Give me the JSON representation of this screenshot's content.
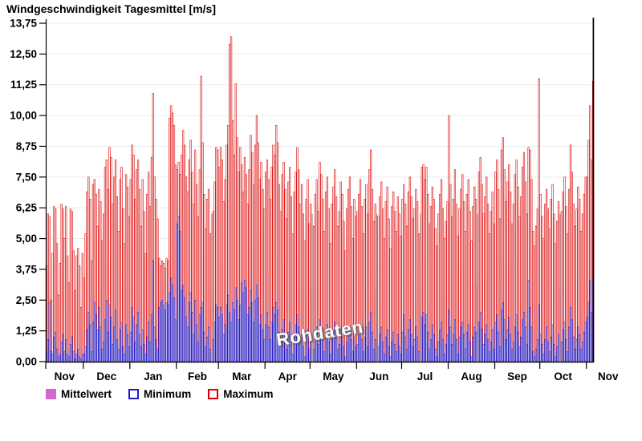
{
  "title": "Windgeschwindigkeit Tagesmittel [m/s]",
  "watermark": "Rohdaten",
  "legend": [
    {
      "label": "Mittelwert",
      "type": "filled",
      "color": "#D368D3"
    },
    {
      "label": "Minimum",
      "type": "outline",
      "color": "#1A1ACC"
    },
    {
      "label": "Maximum",
      "type": "outline",
      "color": "#DC0000"
    }
  ],
  "colors": {
    "mean_fill": "#D368D3",
    "min_stroke": "#1A1ACC",
    "max_stroke": "#DC0000",
    "bar_inner": "#FFFFFF",
    "grid": "#EBEBEB",
    "axis": "#000000",
    "missing_marker": "#999999",
    "text": "#000000"
  },
  "chart_data": {
    "type": "bar",
    "title": "Windgeschwindigkeit Tagesmittel [m/s]",
    "xlabel": "",
    "ylabel": "",
    "ylim": [
      0,
      13.75
    ],
    "grid": "horizontal",
    "legend_position": "bottom-left",
    "y_tick_values": [
      0,
      1.25,
      2.5,
      3.75,
      5,
      6.25,
      7.5,
      8.75,
      10,
      11.25,
      12.5,
      13.75
    ],
    "y_tick_labels": [
      "0,00",
      "1,25",
      "2,50",
      "3,75",
      "5,00",
      "6,25",
      "7,50",
      "8,75",
      "10,00",
      "11,25",
      "12,50",
      "13,75"
    ],
    "x_month_labels": [
      "Nov",
      "Dec",
      "Jan",
      "Feb",
      "Mar",
      "Apr",
      "May",
      "Jun",
      "Jul",
      "Aug",
      "Sep",
      "Oct",
      "Nov"
    ],
    "month_start_days": [
      0,
      25,
      56,
      87,
      115,
      146,
      176,
      207,
      237,
      268,
      299,
      329,
      360,
      389
    ],
    "days": 365,
    "missing_days": [
      110,
      177,
      220,
      249,
      287,
      342
    ],
    "series": [
      {
        "name": "Minimum",
        "values": [
          0.4,
          0.9,
          2.4,
          0.4,
          0.3,
          1.0,
          1.2,
          0.5,
          0.2,
          0.3,
          0.8,
          1.1,
          0.4,
          0.9,
          0.3,
          0.2,
          0.7,
          1.0,
          0.4,
          0.1,
          0.3,
          0.5,
          0.2,
          0.1,
          0.3,
          0.3,
          0.6,
          1.3,
          2.0,
          1.5,
          0.4,
          1.6,
          2.4,
          1.9,
          1.3,
          2.2,
          1.4,
          0.5,
          0.8,
          1.7,
          2.5,
          1.2,
          2.3,
          1.8,
          0.7,
          1.4,
          2.1,
          0.9,
          0.5,
          1.3,
          1.6,
          0.6,
          0.3,
          1.5,
          1.1,
          0.6,
          1.2,
          2.2,
          1.8,
          0.8,
          1.5,
          2.0,
          1.1,
          0.6,
          1.3,
          0.7,
          0.3,
          1.0,
          1.6,
          0.8,
          1.9,
          4.1,
          1.4,
          0.9,
          0.5,
          2.2,
          2.4,
          2.5,
          2.3,
          2.1,
          2.4,
          2.3,
          2.8,
          3.4,
          3.1,
          2.6,
          1.7,
          5.6,
          5.9,
          5.3,
          2.9,
          3.1,
          2.6,
          1.8,
          1.4,
          2.4,
          2.8,
          2.0,
          1.1,
          2.5,
          1.5,
          0.8,
          1.9,
          2.2,
          2.4,
          1.2,
          0.6,
          1.0,
          1.4,
          0.5,
          0.0,
          0.9,
          1.6,
          2.3,
          2.2,
          1.8,
          2.2,
          1.9,
          1.1,
          1.5,
          2.3,
          2.7,
          2.0,
          1.6,
          2.4,
          2.1,
          3.0,
          2.5,
          1.7,
          2.3,
          3.2,
          2.8,
          3.3,
          3.0,
          1.9,
          2.2,
          2.9,
          2.4,
          1.6,
          2.5,
          3.1,
          2.6,
          1.5,
          1.9,
          1.3,
          0.9,
          1.5,
          2.0,
          1.4,
          0.9,
          1.6,
          2.2,
          1.9,
          2.4,
          2.1,
          1.2,
          0.7,
          1.3,
          1.7,
          1.1,
          0.5,
          1.2,
          1.6,
          0.9,
          0.3,
          1.0,
          1.5,
          1.9,
          1.4,
          0.8,
          1.1,
          0.6,
          0.2,
          0.8,
          1.3,
          0.5,
          0.8,
          0.0,
          0.5,
          1.0,
          1.4,
          0.7,
          1.7,
          1.3,
          0.9,
          0.4,
          1.1,
          1.5,
          0.8,
          0.3,
          0.9,
          1.2,
          1.6,
          1.0,
          0.5,
          0.7,
          1.3,
          1.0,
          0.6,
          0.2,
          0.8,
          1.2,
          1.4,
          0.9,
          0.4,
          1.0,
          0.6,
          0.7,
          1.1,
          1.5,
          0.9,
          0.4,
          1.0,
          1.4,
          0.6,
          1.6,
          2.0,
          1.2,
          0.5,
          0.9,
          0.0,
          0.6,
          1.1,
          1.4,
          0.8,
          0.3,
          1.0,
          1.3,
          0.6,
          0.2,
          0.8,
          1.2,
          0.7,
          0.4,
          1.1,
          0.6,
          0.3,
          1.2,
          1.9,
          1.0,
          0.5,
          1.3,
          1.7,
          1.1,
          0.6,
          0.9,
          1.4,
          1.0,
          0.4,
          0.0,
          1.8,
          2.0,
          1.5,
          1.9,
          1.2,
          0.5,
          0.9,
          1.5,
          1.1,
          0.5,
          0.2,
          0.8,
          1.3,
          1.6,
          0.9,
          0.3,
          0.7,
          1.1,
          2.1,
          1.4,
          0.7,
          1.1,
          1.7,
          0.9,
          0.3,
          1.0,
          1.4,
          1.6,
          1.1,
          0.5,
          1.2,
          1.5,
          0.8,
          0.2,
          1.0,
          1.4,
          1.2,
          0.0,
          1.6,
          2.0,
          1.3,
          0.7,
          1.1,
          1.5,
          0.9,
          0.4,
          0.8,
          1.3,
          0.5,
          1.6,
          1.9,
          1.2,
          0.6,
          2.1,
          2.4,
          1.7,
          0.9,
          1.3,
          1.8,
          1.1,
          0.5,
          0.8,
          1.4,
          1.9,
          1.2,
          0.6,
          1.0,
          1.7,
          2.0,
          1.4,
          0.7,
          3.3,
          2.2,
          1.4,
          0.4,
          0.2,
          0.5,
          0.9,
          2.3,
          1.1,
          0.7,
          0.3,
          0.9,
          1.4,
          0.8,
          0.4,
          1.0,
          1.5,
          0.7,
          0.2,
          0.6,
          1.1,
          0.0,
          0.8,
          1.3,
          1.6,
          0.9,
          0.4,
          1.4,
          2.2,
          1.7,
          1.0,
          0.5,
          0.9,
          1.4,
          1.1,
          0.5,
          0.8,
          1.2,
          1.6,
          1.8,
          2.4,
          3.3,
          2.0,
          3.4
        ]
      },
      {
        "name": "Mittelwert",
        "values": [
          1.9,
          2.7,
          3.7,
          1.4,
          2.0,
          3.3,
          3.5,
          2.4,
          1.1,
          1.8,
          2.9,
          3.4,
          2.3,
          3.2,
          2.0,
          1.4,
          2.8,
          3.3,
          2.1,
          1.2,
          2.0,
          2.2,
          1.6,
          0.9,
          1.9,
          1.5,
          2.4,
          3.2,
          3.8,
          3.0,
          1.8,
          3.4,
          3.7,
          3.1,
          2.4,
          3.3,
          2.9,
          2.1,
          2.7,
          3.9,
          4.4,
          3.3,
          4.5,
          4.1,
          2.9,
          3.6,
          4.2,
          3.0,
          2.3,
          3.5,
          3.8,
          2.8,
          2.0,
          3.7,
          3.3,
          2.6,
          3.6,
          4.6,
          4.2,
          3.0,
          3.9,
          4.3,
          3.3,
          2.5,
          3.6,
          2.8,
          1.9,
          3.2,
          3.8,
          2.9,
          4.1,
          5.2,
          3.7,
          3.1,
          2.6,
          3.3,
          3.2,
          3.4,
          3.3,
          3.1,
          3.4,
          3.3,
          5.6,
          6.2,
          5.9,
          5.5,
          4.4,
          6.6,
          7.0,
          6.4,
          4.9,
          5.3,
          4.6,
          3.8,
          3.3,
          4.3,
          4.8,
          3.9,
          2.9,
          4.4,
          3.4,
          2.6,
          3.8,
          4.6,
          4.2,
          3.1,
          2.3,
          2.9,
          3.2,
          2.2,
          0.0,
          2.7,
          3.5,
          4.3,
          4.2,
          3.9,
          4.4,
          4.0,
          3.0,
          3.6,
          4.5,
          5.0,
          5.2,
          5.6,
          4.7,
          4.1,
          5.3,
          4.5,
          3.7,
          4.4,
          5.3,
          4.6,
          5.5,
          4.9,
          3.8,
          4.2,
          5.1,
          4.4,
          3.5,
          4.6,
          5.4,
          4.7,
          3.6,
          4.0,
          3.3,
          2.8,
          3.8,
          4.3,
          3.6,
          3.0,
          3.9,
          4.5,
          4.1,
          4.8,
          4.4,
          3.3,
          2.7,
          3.5,
          4.0,
          3.2,
          2.4,
          3.4,
          3.8,
          3.0,
          2.1,
          3.1,
          3.7,
          4.2,
          3.6,
          2.8,
          3.3,
          2.6,
          1.9,
          2.9,
          3.4,
          2.3,
          2.9,
          0.0,
          2.3,
          3.1,
          3.6,
          2.7,
          3.9,
          3.5,
          3.0,
          2.2,
          3.2,
          3.6,
          2.8,
          1.9,
          2.9,
          3.3,
          3.8,
          3.1,
          2.3,
          2.7,
          3.4,
          3.1,
          2.4,
          1.7,
          2.8,
          3.3,
          3.6,
          2.9,
          2.0,
          3.0,
          2.5,
          2.7,
          3.2,
          3.6,
          2.9,
          2.1,
          3.0,
          3.5,
          2.6,
          3.8,
          4.2,
          3.3,
          2.4,
          2.9,
          0.0,
          2.6,
          3.1,
          3.5,
          2.8,
          1.9,
          3.0,
          3.4,
          2.5,
          1.7,
          2.8,
          3.2,
          2.7,
          2.2,
          3.1,
          2.6,
          2.0,
          3.1,
          3.6,
          2.9,
          2.3,
          3.3,
          3.8,
          3.2,
          2.5,
          2.8,
          3.4,
          3.0,
          2.1,
          0.0,
          3.9,
          4.1,
          3.6,
          4.0,
          3.2,
          2.4,
          2.9,
          3.5,
          3.1,
          2.2,
          1.8,
          2.7,
          3.3,
          3.7,
          2.8,
          1.9,
          2.5,
          3.0,
          4.2,
          3.5,
          2.6,
          3.1,
          3.8,
          2.9,
          2.0,
          2.8,
          3.4,
          3.7,
          3.0,
          2.2,
          3.2,
          3.6,
          2.7,
          1.8,
          2.9,
          3.5,
          3.1,
          0.0,
          3.7,
          4.1,
          3.4,
          2.6,
          3.2,
          3.6,
          2.9,
          2.1,
          2.7,
          3.3,
          2.4,
          3.7,
          4.1,
          3.2,
          2.4,
          4.3,
          4.6,
          3.8,
          2.9,
          3.4,
          3.9,
          3.1,
          2.2,
          2.8,
          3.6,
          4.0,
          3.3,
          2.5,
          3.0,
          3.8,
          4.2,
          3.5,
          2.6,
          4.4,
          4.2,
          3.5,
          2.1,
          1.8,
          2.3,
          2.8,
          5.1,
          3.2,
          2.7,
          2.0,
          2.9,
          3.4,
          2.8,
          2.2,
          3.0,
          3.5,
          2.6,
          1.8,
          2.4,
          3.0,
          0.0,
          2.7,
          3.3,
          3.7,
          2.9,
          2.1,
          3.4,
          4.6,
          3.9,
          3.0,
          2.3,
          2.8,
          3.5,
          3.1,
          2.2,
          2.7,
          3.2,
          3.8,
          3.9,
          4.8,
          6.0,
          4.4,
          6.9
        ]
      },
      {
        "name": "Maximum",
        "values": [
          3.9,
          6.0,
          5.9,
          2.5,
          4.4,
          6.3,
          6.2,
          4.8,
          2.7,
          4.0,
          6.4,
          6.2,
          5.0,
          6.3,
          4.3,
          3.2,
          6.2,
          6.1,
          4.5,
          2.9,
          4.3,
          4.6,
          3.9,
          2.2,
          4.4,
          3.4,
          5.2,
          6.9,
          7.5,
          6.6,
          4.1,
          7.2,
          7.4,
          6.8,
          5.5,
          7.0,
          6.5,
          4.9,
          6.0,
          7.9,
          8.2,
          7.0,
          8.7,
          8.3,
          6.4,
          7.5,
          8.2,
          6.7,
          5.3,
          7.4,
          7.9,
          6.2,
          4.8,
          7.6,
          7.1,
          5.9,
          7.4,
          8.8,
          8.4,
          6.6,
          7.8,
          8.2,
          7.0,
          5.5,
          7.4,
          6.1,
          4.4,
          6.8,
          7.7,
          6.3,
          8.3,
          10.9,
          7.5,
          6.6,
          5.8,
          4.2,
          3.9,
          4.1,
          4.0,
          3.8,
          4.2,
          4.1,
          9.9,
          10.4,
          10.1,
          9.6,
          8.0,
          7.8,
          8.1,
          7.6,
          8.4,
          9.4,
          8.8,
          7.5,
          6.9,
          8.2,
          9.0,
          7.7,
          6.4,
          8.6,
          7.2,
          5.9,
          7.8,
          11.6,
          8.9,
          6.8,
          5.4,
          6.6,
          7.0,
          5.2,
          0.0,
          6.1,
          7.3,
          8.7,
          8.6,
          7.9,
          8.7,
          8.2,
          6.5,
          7.4,
          8.8,
          9.6,
          12.9,
          13.2,
          9.8,
          8.4,
          11.3,
          9.1,
          7.7,
          8.7,
          8.0,
          6.9,
          8.3,
          7.6,
          6.4,
          7.8,
          9.2,
          8.5,
          7.2,
          8.8,
          10.0,
          8.9,
          7.4,
          8.1,
          7.0,
          6.2,
          7.7,
          8.2,
          7.4,
          6.6,
          7.9,
          8.8,
          8.4,
          9.6,
          8.9,
          7.2,
          6.1,
          7.6,
          8.1,
          7.0,
          5.8,
          7.3,
          7.9,
          6.7,
          5.2,
          6.9,
          7.7,
          8.7,
          7.8,
          6.4,
          7.2,
          6.0,
          4.9,
          6.6,
          7.4,
          5.6,
          6.4,
          0.0,
          5.5,
          6.8,
          7.4,
          6.1,
          8.1,
          7.6,
          6.6,
          5.3,
          6.9,
          7.5,
          6.2,
          4.8,
          6.4,
          7.1,
          7.8,
          6.7,
          5.5,
          6.1,
          7.3,
          6.8,
          5.7,
          4.5,
          6.2,
          7.0,
          7.5,
          6.3,
          5.0,
          6.6,
          5.9,
          6.1,
          6.8,
          7.4,
          6.3,
          5.2,
          6.6,
          7.2,
          6.0,
          7.8,
          8.6,
          7.0,
          5.7,
          6.4,
          0.0,
          5.9,
          6.7,
          7.3,
          6.2,
          5.0,
          6.5,
          7.1,
          5.8,
          4.6,
          6.3,
          6.9,
          6.1,
          5.3,
          6.7,
          6.0,
          5.1,
          6.6,
          7.2,
          6.4,
          5.5,
          6.9,
          7.5,
          6.7,
          5.8,
          6.2,
          7.0,
          6.5,
          5.2,
          0.0,
          7.9,
          8.0,
          7.4,
          7.9,
          6.8,
          5.6,
          6.3,
          7.1,
          6.6,
          5.4,
          4.7,
          6.0,
          6.8,
          7.4,
          6.2,
          5.0,
          5.7,
          6.5,
          10.0,
          7.2,
          5.9,
          6.6,
          7.8,
          6.4,
          5.1,
          6.2,
          7.0,
          7.6,
          6.5,
          5.3,
          6.8,
          7.4,
          6.1,
          4.9,
          6.3,
          7.1,
          6.6,
          0.0,
          7.7,
          8.3,
          7.2,
          6.0,
          6.7,
          7.5,
          6.4,
          5.2,
          6.1,
          6.9,
          5.6,
          7.7,
          8.2,
          7.0,
          5.8,
          8.6,
          9.1,
          7.8,
          6.5,
          7.3,
          8.0,
          6.9,
          5.6,
          6.4,
          7.6,
          8.2,
          7.1,
          5.9,
          6.7,
          7.9,
          8.5,
          7.3,
          6.0,
          8.7,
          8.6,
          7.4,
          5.3,
          4.7,
          5.5,
          6.2,
          11.5,
          6.8,
          5.9,
          5.0,
          6.4,
          7.0,
          6.2,
          5.4,
          6.6,
          7.2,
          6.0,
          4.8,
          5.7,
          6.5,
          0.0,
          6.1,
          6.9,
          7.5,
          6.3,
          5.2,
          7.0,
          8.8,
          7.7,
          6.4,
          5.5,
          6.2,
          7.1,
          6.6,
          5.3,
          6.0,
          6.8,
          7.5,
          7.5,
          9.0,
          10.4,
          8.2,
          11.4
        ]
      }
    ]
  }
}
